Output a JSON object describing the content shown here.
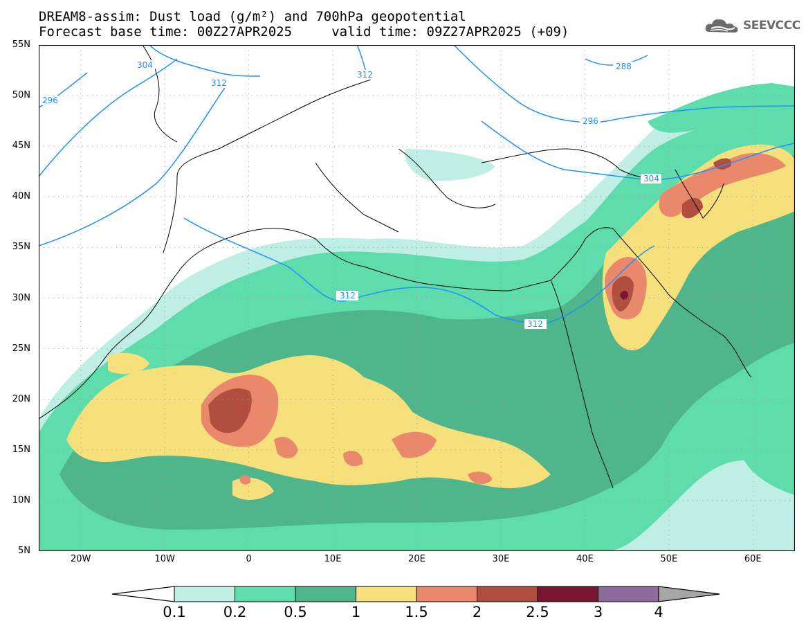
{
  "header": {
    "title_line1": "DREAM8-assim: Dust load (g/m²) and 700hPa geopotential",
    "title_line2": "Forecast base time: 00Z27APR2025     valid time: 09Z27APR2025 (+09)",
    "logo_text": "SEEVCCC",
    "logo_icon": "cloud-icon"
  },
  "map": {
    "lon_range": [
      -25,
      65
    ],
    "lat_range": [
      5,
      55
    ],
    "lat_labels": [
      "55N",
      "50N",
      "45N",
      "40N",
      "35N",
      "30N",
      "25N",
      "20N",
      "15N",
      "10N",
      "5N"
    ],
    "lon_labels": [
      "20W",
      "10W",
      "0",
      "10E",
      "20E",
      "30E",
      "40E",
      "50E",
      "60E"
    ],
    "contour_labels": {
      "c304_west": "304",
      "c296_west": "296",
      "c312_north": "312",
      "c312_baltic": "312",
      "c288": "288",
      "c296_east": "296",
      "c304_east": "304",
      "c312_africa": "312",
      "c312_sinai": "312"
    },
    "contour_color": "#1e90ff",
    "grid_color": "#9a9a9a"
  },
  "colorbar": {
    "labels": [
      "0.1",
      "0.2",
      "0.5",
      "1",
      "1.5",
      "2",
      "2.5",
      "3",
      "4"
    ],
    "colors": [
      "#bfefe4",
      "#5fdcab",
      "#4fb58a",
      "#f5e07c",
      "#e9886a",
      "#b04e40",
      "#7a1532",
      "#8e6b9c",
      "#a6a6a6"
    ]
  }
}
